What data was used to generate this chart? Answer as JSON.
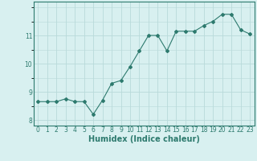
{
  "x": [
    0,
    1,
    2,
    3,
    4,
    5,
    6,
    7,
    8,
    9,
    10,
    11,
    12,
    13,
    14,
    15,
    16,
    17,
    18,
    19,
    20,
    21,
    22,
    23
  ],
  "y": [
    8.65,
    8.65,
    8.65,
    8.75,
    8.65,
    8.65,
    8.2,
    8.7,
    9.3,
    9.4,
    9.9,
    10.45,
    11.0,
    11.0,
    10.45,
    11.15,
    11.15,
    11.15,
    11.35,
    11.5,
    11.75,
    11.75,
    11.2,
    11.05
  ],
  "xlabel": "Humidex (Indice chaleur)",
  "ylim": [
    7.8,
    12.2
  ],
  "xlim": [
    -0.5,
    23.5
  ],
  "yticks": [
    8,
    9,
    10,
    11
  ],
  "xtick_labels": [
    "0",
    "1",
    "2",
    "3",
    "4",
    "5",
    "6",
    "7",
    "8",
    "9",
    "10",
    "11",
    "12",
    "13",
    "14",
    "15",
    "16",
    "17",
    "18",
    "19",
    "20",
    "21",
    "22",
    "23"
  ],
  "xticks": [
    0,
    1,
    2,
    3,
    4,
    5,
    6,
    7,
    8,
    9,
    10,
    11,
    12,
    13,
    14,
    15,
    16,
    17,
    18,
    19,
    20,
    21,
    22,
    23
  ],
  "line_color": "#2d7a6e",
  "bg_color": "#d8f0f0",
  "grid_color": "#b8dada",
  "tick_label_fontsize": 5.5,
  "xlabel_fontsize": 7
}
